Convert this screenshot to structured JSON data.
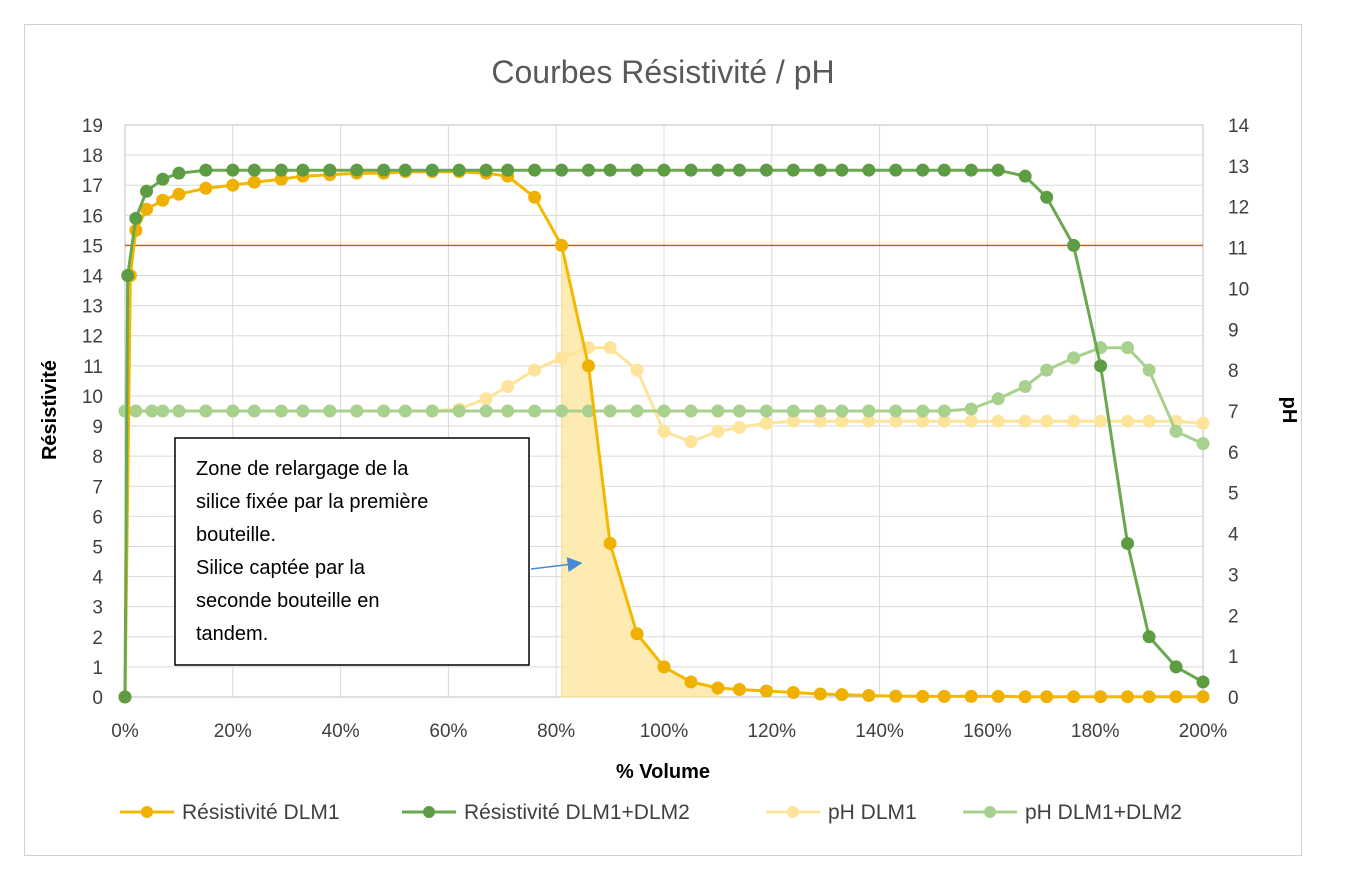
{
  "chart_data": {
    "type": "line",
    "title": "Courbes Résistivité / pH",
    "xlabel": "% Volume",
    "ylabel": "Résistivité",
    "y2label": "pH",
    "xlim": [
      0,
      200
    ],
    "ylim": [
      0,
      19
    ],
    "y2lim": [
      0,
      14
    ],
    "x_ticks": [
      "0%",
      "20%",
      "40%",
      "60%",
      "80%",
      "100%",
      "120%",
      "140%",
      "160%",
      "180%",
      "200%"
    ],
    "x_tick_values": [
      0,
      20,
      40,
      60,
      80,
      100,
      120,
      140,
      160,
      180,
      200
    ],
    "y_ticks": [
      "0",
      "1",
      "2",
      "3",
      "4",
      "5",
      "6",
      "7",
      "8",
      "9",
      "10",
      "11",
      "12",
      "13",
      "14",
      "15",
      "16",
      "17",
      "18",
      "19"
    ],
    "y2_ticks": [
      "0",
      "1",
      "2",
      "3",
      "4",
      "5",
      "6",
      "7",
      "8",
      "9",
      "10",
      "11",
      "12",
      "13",
      "14"
    ],
    "grid": true,
    "legend_position": "bottom",
    "threshold_y": 15,
    "series": [
      {
        "name": "Résistivité DLM1",
        "axis": "left",
        "color": "#f5b800",
        "x": [
          0,
          1,
          2,
          4,
          7,
          10,
          15,
          20,
          24,
          29,
          33,
          38,
          43,
          48,
          52,
          57,
          62,
          67,
          71,
          76,
          81,
          86,
          90,
          95,
          100,
          105,
          110,
          114,
          119,
          124,
          129,
          133,
          138,
          143,
          148,
          152,
          157,
          162,
          167,
          171,
          176,
          181,
          186,
          190,
          195,
          200
        ],
        "values": [
          0,
          14,
          15.5,
          16.2,
          16.5,
          16.7,
          16.9,
          17.0,
          17.1,
          17.2,
          17.3,
          17.35,
          17.4,
          17.4,
          17.45,
          17.45,
          17.45,
          17.4,
          17.3,
          16.6,
          15.0,
          11.0,
          5.1,
          2.1,
          1.0,
          0.5,
          0.3,
          0.25,
          0.2,
          0.15,
          0.1,
          0.08,
          0.05,
          0.03,
          0.02,
          0.02,
          0.02,
          0.02,
          0.01,
          0.01,
          0.01,
          0.01,
          0.01,
          0.01,
          0.01,
          0.01
        ]
      },
      {
        "name": "Résistivité DLM1+DLM2",
        "axis": "left",
        "color": "#6aa84f",
        "x": [
          0,
          0.5,
          2,
          4,
          7,
          10,
          15,
          20,
          24,
          29,
          33,
          38,
          43,
          48,
          52,
          57,
          62,
          67,
          71,
          76,
          81,
          86,
          90,
          95,
          100,
          105,
          110,
          114,
          119,
          124,
          129,
          133,
          138,
          143,
          148,
          152,
          157,
          162,
          167,
          171,
          176,
          181,
          186,
          190,
          195,
          200
        ],
        "values": [
          0,
          14,
          15.9,
          16.8,
          17.2,
          17.4,
          17.5,
          17.5,
          17.5,
          17.5,
          17.5,
          17.5,
          17.5,
          17.5,
          17.5,
          17.5,
          17.5,
          17.5,
          17.5,
          17.5,
          17.5,
          17.5,
          17.5,
          17.5,
          17.5,
          17.5,
          17.5,
          17.5,
          17.5,
          17.5,
          17.5,
          17.5,
          17.5,
          17.5,
          17.5,
          17.5,
          17.5,
          17.5,
          17.3,
          16.6,
          15.0,
          11.0,
          5.1,
          2.0,
          1.0,
          0.5
        ]
      },
      {
        "name": "pH DLM1",
        "axis": "right",
        "color": "#fde49a",
        "x": [
          0,
          2,
          5,
          10,
          15,
          20,
          24,
          29,
          33,
          38,
          43,
          48,
          52,
          57,
          62,
          67,
          71,
          76,
          81,
          86,
          90,
          95,
          100,
          105,
          110,
          114,
          119,
          124,
          129,
          133,
          138,
          143,
          148,
          152,
          157,
          162,
          167,
          171,
          176,
          181,
          186,
          190,
          195,
          200
        ],
        "values": [
          7,
          7,
          7,
          7,
          7,
          7,
          7,
          7,
          7,
          7,
          7,
          7,
          7,
          7,
          7.05,
          7.3,
          7.6,
          8.0,
          8.3,
          8.55,
          8.55,
          8.0,
          6.5,
          6.25,
          6.5,
          6.6,
          6.7,
          6.75,
          6.75,
          6.75,
          6.75,
          6.75,
          6.75,
          6.75,
          6.75,
          6.75,
          6.75,
          6.75,
          6.75,
          6.75,
          6.75,
          6.75,
          6.75,
          6.7
        ]
      },
      {
        "name": "pH DLM1+DLM2",
        "axis": "right",
        "color": "#a9d18e",
        "x": [
          0,
          2,
          5,
          7,
          10,
          15,
          20,
          24,
          29,
          33,
          38,
          43,
          48,
          52,
          57,
          62,
          67,
          71,
          76,
          81,
          86,
          90,
          95,
          100,
          105,
          110,
          114,
          119,
          124,
          129,
          133,
          138,
          143,
          148,
          152,
          157,
          162,
          167,
          171,
          176,
          181,
          186,
          190,
          195,
          200
        ],
        "values": [
          7,
          7,
          7,
          7,
          7,
          7,
          7,
          7,
          7,
          7,
          7,
          7,
          7,
          7,
          7,
          7,
          7,
          7,
          7,
          7,
          7,
          7,
          7,
          7,
          7,
          7,
          7,
          7,
          7,
          7,
          7,
          7,
          7,
          7,
          7,
          7.05,
          7.3,
          7.6,
          8.0,
          8.3,
          8.55,
          8.55,
          8.0,
          6.5,
          6.2
        ]
      }
    ],
    "annotation": {
      "lines": [
        "Zone de relargage de la",
        "silice fixée par la première",
        "bouteille.",
        "Silice captée par la",
        "seconde bouteille en",
        "tandem."
      ]
    },
    "shaded_zone_color": "#fde9a9"
  }
}
